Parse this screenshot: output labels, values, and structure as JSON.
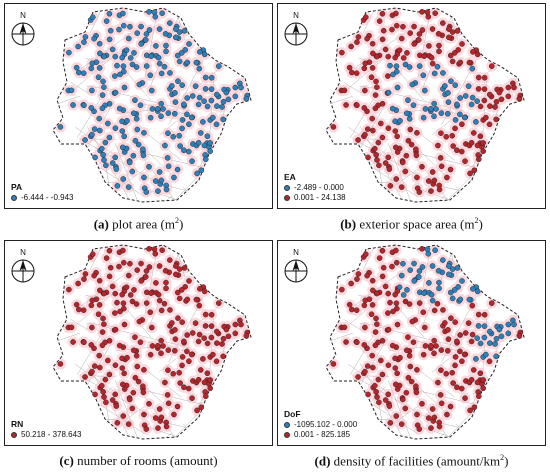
{
  "colors": {
    "negative_cluster": "#2f7fb8",
    "positive_cluster": "#b3262b",
    "hotspot_fill": "#f7b8c4",
    "streets": "#a8a8a8",
    "boundary": "#222222"
  },
  "panels": [
    {
      "id": "a",
      "legend_title": "PA",
      "legend": [
        {
          "label": "-6.444 - -0.943",
          "color": "#2f7fb8"
        }
      ],
      "caption_letter": "(a)",
      "caption_text": "plot area (m",
      "caption_sup": "2",
      "caption_tail": ")",
      "north_label": "N",
      "dominant": "negative",
      "secondary": "none"
    },
    {
      "id": "b",
      "legend_title": "EA",
      "legend": [
        {
          "label": "-2.489 - 0.000",
          "color": "#2f7fb8"
        },
        {
          "label": "0.001 - 24.138",
          "color": "#b3262b"
        }
      ],
      "caption_letter": "(b)",
      "caption_text": "exterior space area (m",
      "caption_sup": "2",
      "caption_tail": ")",
      "north_label": "N",
      "dominant": "positive",
      "secondary": "center"
    },
    {
      "id": "c",
      "legend_title": "RN",
      "legend": [
        {
          "label": "50.218 - 378.643",
          "color": "#b3262b"
        }
      ],
      "caption_letter": "(c)",
      "caption_text": "number of rooms (amount)",
      "caption_sup": "",
      "caption_tail": "",
      "north_label": "N",
      "dominant": "positive",
      "secondary": "none"
    },
    {
      "id": "d",
      "legend_title": "DoF",
      "legend": [
        {
          "label": "-1095.102 - 0.000",
          "color": "#2f7fb8"
        },
        {
          "label": "0.001 - 825.185",
          "color": "#b3262b"
        }
      ],
      "caption_letter": "(d)",
      "caption_text": "density of facilities (amount/km",
      "caption_sup": "2",
      "caption_tail": ")",
      "north_label": "N",
      "dominant": "positive",
      "secondary": "north-east"
    }
  ]
}
